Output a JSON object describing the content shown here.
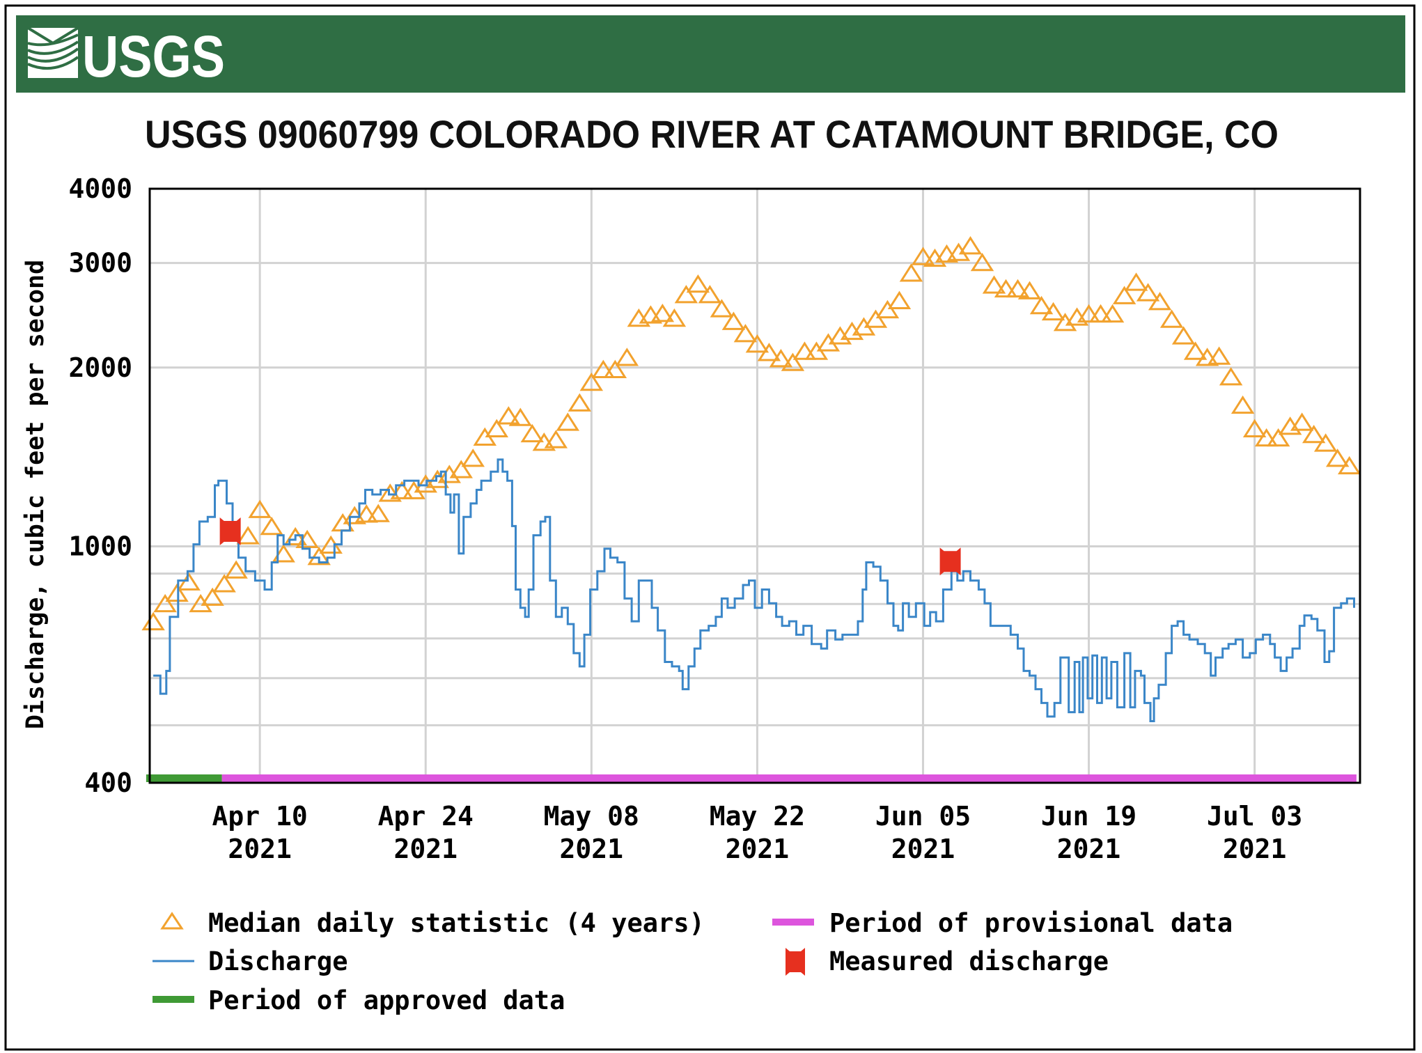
{
  "header": {
    "logo_text": "USGS",
    "background_color": "#2f6e44"
  },
  "chart_data": {
    "type": "line",
    "title": "USGS 09060799 COLORADO RIVER AT CATAMOUNT BRIDGE, CO",
    "ylabel": "Discharge, cubic feet per second",
    "xlabel": "",
    "yscale": "log",
    "ylim": [
      400,
      4000
    ],
    "y_ticks": [
      {
        "value": 4000,
        "label": "4000"
      },
      {
        "value": 3000,
        "label": "3000"
      },
      {
        "value": 2000,
        "label": "2000"
      },
      {
        "value": 1000,
        "label": "1000"
      },
      {
        "value": 400,
        "label": "400"
      }
    ],
    "y_gridlines": [
      500,
      600,
      700,
      800,
      900,
      1000,
      2000,
      3000
    ],
    "x_unit": "days since Apr 01 2021",
    "xlim": [
      -0.3,
      101.9
    ],
    "x_ticks": [
      {
        "day": 9,
        "label": "Apr 10",
        "year": "2021"
      },
      {
        "day": 23,
        "label": "Apr 24",
        "year": "2021"
      },
      {
        "day": 37,
        "label": "May 08",
        "year": "2021"
      },
      {
        "day": 51,
        "label": "May 22",
        "year": "2021"
      },
      {
        "day": 65,
        "label": "Jun 05",
        "year": "2021"
      },
      {
        "day": 79,
        "label": "Jun 19",
        "year": "2021"
      },
      {
        "day": 93,
        "label": "Jul 03",
        "year": "2021"
      }
    ],
    "grid": true,
    "colors": {
      "median": "#f2a22e",
      "discharge": "#3a86c8",
      "measured": "#e6301f",
      "approved": "#3f9a35",
      "provisional": "#dd55dd",
      "grid": "#d2d2d2"
    },
    "series": [
      {
        "name": "Median daily statistic (4 years)",
        "kind": "median",
        "values": [
          743,
          797,
          830,
          867,
          797,
          817,
          861,
          908,
          1037,
          1148,
          1075,
          967,
          1033,
          1022,
          957,
          1000,
          1090,
          1121,
          1128,
          1130,
          1223,
          1235,
          1235,
          1267,
          1290,
          1315,
          1340,
          1400,
          1520,
          1570,
          1650,
          1640,
          1540,
          1490,
          1505,
          1610,
          1735,
          1880,
          1975,
          1975,
          2070,
          2410,
          2440,
          2455,
          2410,
          2640,
          2750,
          2640,
          2500,
          2380,
          2270,
          2180,
          2110,
          2060,
          2030,
          2120,
          2120,
          2190,
          2250,
          2290,
          2330,
          2400,
          2490,
          2580,
          2870,
          3060,
          3040,
          3090,
          3110,
          3190,
          2990,
          2740,
          2700,
          2700,
          2680,
          2530,
          2470,
          2370,
          2420,
          2450,
          2450,
          2450,
          2630,
          2770,
          2660,
          2570,
          2400,
          2250,
          2120,
          2070,
          2080,
          1920,
          1720,
          1570,
          1515,
          1515,
          1585,
          1610,
          1535,
          1485,
          1400,
          1360
        ]
      },
      {
        "name": "Discharge",
        "kind": "discharge",
        "points": [
          [
            0,
            606
          ],
          [
            0.6,
            565
          ],
          [
            1.1,
            617
          ],
          [
            1.4,
            761
          ],
          [
            2.1,
            876
          ],
          [
            2.9,
            908
          ],
          [
            3.4,
            1008
          ],
          [
            3.9,
            1101
          ],
          [
            4.6,
            1121
          ],
          [
            5.2,
            1267
          ],
          [
            5.5,
            1290
          ],
          [
            6.2,
            1181
          ],
          [
            6.7,
            1044
          ],
          [
            7.2,
            957
          ],
          [
            7.8,
            908
          ],
          [
            8.6,
            876
          ],
          [
            9.4,
            846
          ],
          [
            10,
            940
          ],
          [
            10.5,
            1044
          ],
          [
            11,
            1008
          ],
          [
            11.5,
            1026
          ],
          [
            12,
            1044
          ],
          [
            12.6,
            991
          ],
          [
            13.2,
            957
          ],
          [
            14,
            940
          ],
          [
            14.7,
            957
          ],
          [
            15.3,
            1008
          ],
          [
            15.9,
            1063
          ],
          [
            16.6,
            1121
          ],
          [
            17.4,
            1181
          ],
          [
            17.9,
            1245
          ],
          [
            18.5,
            1223
          ],
          [
            19.2,
            1245
          ],
          [
            19.9,
            1223
          ],
          [
            20.5,
            1267
          ],
          [
            21.2,
            1290
          ],
          [
            22.4,
            1267
          ],
          [
            23.1,
            1290
          ],
          [
            23.9,
            1313
          ],
          [
            24.3,
            1336
          ],
          [
            24.7,
            1223
          ],
          [
            25.1,
            1140
          ],
          [
            25.4,
            1223
          ],
          [
            25.8,
            973
          ],
          [
            26.2,
            1121
          ],
          [
            26.8,
            1181
          ],
          [
            27.3,
            1245
          ],
          [
            27.7,
            1290
          ],
          [
            28.5,
            1336
          ],
          [
            29.1,
            1400
          ],
          [
            29.5,
            1336
          ],
          [
            29.9,
            1290
          ],
          [
            30.3,
            1082
          ],
          [
            30.6,
            846
          ],
          [
            31,
            788
          ],
          [
            31.4,
            761
          ],
          [
            31.7,
            846
          ],
          [
            32.1,
            1044
          ],
          [
            32.7,
            1101
          ],
          [
            33.1,
            1121
          ],
          [
            33.5,
            876
          ],
          [
            34,
            761
          ],
          [
            34.5,
            788
          ],
          [
            35,
            740
          ],
          [
            35.5,
            661
          ],
          [
            36,
            628
          ],
          [
            36.4,
            710
          ],
          [
            36.9,
            846
          ],
          [
            37.5,
            908
          ],
          [
            38.1,
            991
          ],
          [
            38.6,
            957
          ],
          [
            39.2,
            940
          ],
          [
            39.8,
            817
          ],
          [
            40.4,
            748
          ],
          [
            41,
            876
          ],
          [
            41.5,
            876
          ],
          [
            42.1,
            788
          ],
          [
            42.6,
            722
          ],
          [
            43.2,
            639
          ],
          [
            43.8,
            628
          ],
          [
            44.4,
            617
          ],
          [
            44.7,
            575
          ],
          [
            45.2,
            628
          ],
          [
            45.7,
            673
          ],
          [
            46.2,
            722
          ],
          [
            46.9,
            735
          ],
          [
            47.5,
            761
          ],
          [
            48,
            817
          ],
          [
            48.5,
            788
          ],
          [
            49.1,
            817
          ],
          [
            49.8,
            861
          ],
          [
            50.3,
            876
          ],
          [
            50.8,
            788
          ],
          [
            51.4,
            846
          ],
          [
            52,
            802
          ],
          [
            52.6,
            761
          ],
          [
            53.1,
            735
          ],
          [
            53.7,
            748
          ],
          [
            54.3,
            710
          ],
          [
            54.9,
            735
          ],
          [
            55.6,
            685
          ],
          [
            56.4,
            673
          ],
          [
            56.9,
            722
          ],
          [
            57.6,
            697
          ],
          [
            58.2,
            710
          ],
          [
            58.7,
            710
          ],
          [
            59.5,
            748
          ],
          [
            59.9,
            846
          ],
          [
            60.2,
            940
          ],
          [
            60.8,
            924
          ],
          [
            61.4,
            876
          ],
          [
            62,
            802
          ],
          [
            62.5,
            735
          ],
          [
            62.9,
            722
          ],
          [
            63.3,
            802
          ],
          [
            63.8,
            761
          ],
          [
            64.4,
            802
          ],
          [
            65.1,
            735
          ],
          [
            65.6,
            775
          ],
          [
            66.1,
            748
          ],
          [
            66.7,
            846
          ],
          [
            67.4,
            908
          ],
          [
            67.9,
            876
          ],
          [
            68.4,
            908
          ],
          [
            69,
            876
          ],
          [
            69.7,
            846
          ],
          [
            70.2,
            802
          ],
          [
            70.7,
            735
          ],
          [
            71.3,
            735
          ],
          [
            71.9,
            735
          ],
          [
            72.4,
            710
          ],
          [
            73,
            673
          ],
          [
            73.5,
            617
          ],
          [
            74,
            606
          ],
          [
            74.5,
            575
          ],
          [
            75,
            545
          ],
          [
            75.5,
            517
          ],
          [
            76.1,
            545
          ],
          [
            76.6,
            650
          ],
          [
            77.3,
            526
          ],
          [
            77.8,
            639
          ],
          [
            78.2,
            526
          ],
          [
            78.5,
            650
          ],
          [
            78.9,
            555
          ],
          [
            79.3,
            655
          ],
          [
            79.7,
            545
          ],
          [
            80.1,
            650
          ],
          [
            80.5,
            555
          ],
          [
            80.9,
            639
          ],
          [
            81.4,
            536
          ],
          [
            82,
            661
          ],
          [
            82.5,
            536
          ],
          [
            82.9,
            617
          ],
          [
            83.4,
            606
          ],
          [
            83.7,
            545
          ],
          [
            84.2,
            508
          ],
          [
            84.5,
            555
          ],
          [
            84.9,
            585
          ],
          [
            85.5,
            661
          ],
          [
            86,
            735
          ],
          [
            86.5,
            748
          ],
          [
            87,
            710
          ],
          [
            87.5,
            697
          ],
          [
            88.2,
            685
          ],
          [
            88.8,
            661
          ],
          [
            89.3,
            606
          ],
          [
            89.7,
            650
          ],
          [
            90.3,
            673
          ],
          [
            90.8,
            685
          ],
          [
            91.4,
            697
          ],
          [
            92,
            650
          ],
          [
            92.6,
            661
          ],
          [
            93.1,
            697
          ],
          [
            93.7,
            710
          ],
          [
            94.3,
            685
          ],
          [
            94.7,
            650
          ],
          [
            95.2,
            617
          ],
          [
            95.7,
            650
          ],
          [
            96.2,
            673
          ],
          [
            96.8,
            735
          ],
          [
            97.2,
            765
          ],
          [
            97.8,
            755
          ],
          [
            98.3,
            722
          ],
          [
            98.9,
            639
          ],
          [
            99.3,
            666
          ],
          [
            99.7,
            788
          ],
          [
            100.3,
            802
          ],
          [
            100.8,
            817
          ],
          [
            101.4,
            788
          ]
        ]
      },
      {
        "name": "Measured discharge",
        "kind": "measured",
        "points": [
          [
            6.5,
            1060
          ],
          [
            67.3,
            943
          ]
        ]
      }
    ],
    "periods": [
      {
        "name": "Period of approved data",
        "kind": "approved",
        "start_day": -0.6,
        "end_day": 5.8
      },
      {
        "name": "Period of provisional data",
        "kind": "provisional",
        "start_day": 5.8,
        "end_day": 101.6
      }
    ],
    "legend": {
      "placement": "bottom",
      "items": [
        {
          "label": "Median daily statistic (4 years)",
          "kind": "median"
        },
        {
          "label": "Discharge",
          "kind": "discharge"
        },
        {
          "label": "Period of approved data",
          "kind": "approved"
        },
        {
          "label": "Period of provisional data",
          "kind": "provisional"
        },
        {
          "label": "Measured discharge",
          "kind": "measured"
        }
      ]
    }
  }
}
